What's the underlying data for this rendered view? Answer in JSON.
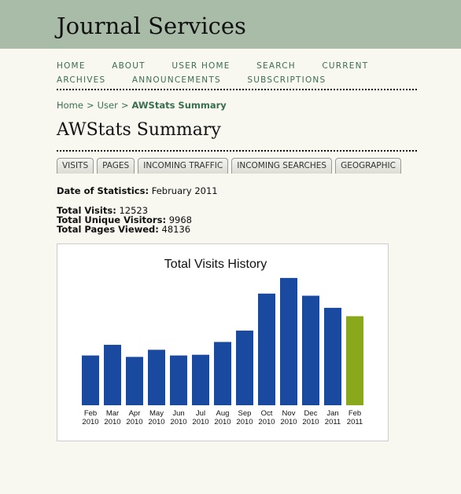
{
  "header": {
    "title": "Journal Services"
  },
  "nav": {
    "row1": [
      "Home",
      "About",
      "User Home",
      "Search",
      "Current"
    ],
    "row2": [
      "Archives",
      "Announcements",
      "Subscriptions"
    ]
  },
  "breadcrumb": {
    "home": "Home",
    "user": "User",
    "current": "AWStats Summary",
    "separator": ">"
  },
  "page": {
    "title": "AWStats Summary"
  },
  "tabs": [
    "Visits",
    "Pages",
    "Incoming Traffic",
    "Incoming Searches",
    "Geographic"
  ],
  "stats": {
    "date_label": "Date of Statistics:",
    "date_value": "February 2011",
    "visits_label": "Total Visits:",
    "visits_value": "12523",
    "unique_label": "Total Unique Visitors:",
    "unique_value": "9968",
    "pages_label": "Total Pages Viewed:",
    "pages_value": "48136"
  },
  "chart_data": {
    "type": "bar",
    "title": "Total Visits History",
    "categories": [
      "Feb\n2010",
      "Mar\n2010",
      "Apr\n2010",
      "May\n2010",
      "Jun\n2010",
      "Jul\n2010",
      "Aug\n2010",
      "Sep\n2010",
      "Oct\n2010",
      "Nov\n2010",
      "Dec\n2010",
      "Jan\n2011",
      "Feb\n2011"
    ],
    "values": [
      7000,
      8500,
      6800,
      7800,
      7000,
      7100,
      8900,
      10500,
      15700,
      17900,
      15400,
      13700,
      12523
    ],
    "colors": [
      "#1a4aa0",
      "#1a4aa0",
      "#1a4aa0",
      "#1a4aa0",
      "#1a4aa0",
      "#1a4aa0",
      "#1a4aa0",
      "#1a4aa0",
      "#1a4aa0",
      "#1a4aa0",
      "#1a4aa0",
      "#1a4aa0",
      "#8aa81c"
    ],
    "ylim": [
      0,
      18000
    ],
    "grid": false
  }
}
